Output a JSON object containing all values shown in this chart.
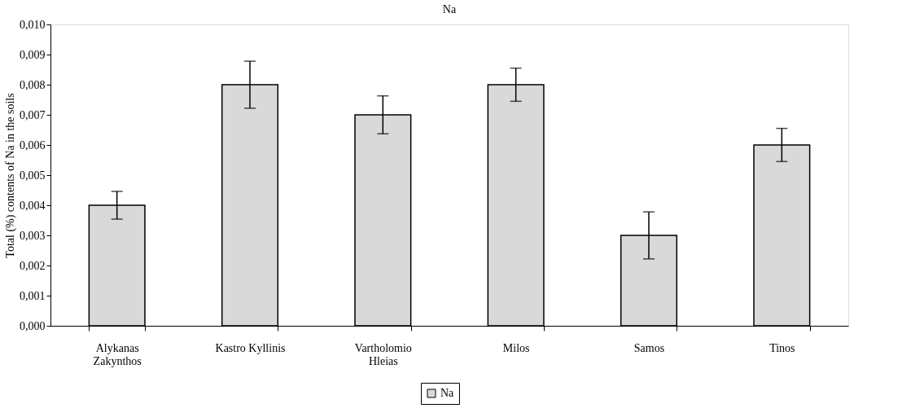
{
  "chart_data": {
    "type": "bar",
    "title": "Na",
    "ylabel": "Total (%) contents of Na in the soils",
    "categories": [
      "Alykanas\nZakynthos",
      "Kastro Kyllinis",
      "Vartholomio\nHleias",
      "Milos",
      "Samos",
      "Tinos"
    ],
    "series": [
      {
        "name": "Na",
        "color": "#d9d9d9",
        "values": [
          0.004,
          0.008,
          0.007,
          0.008,
          0.003,
          0.006
        ],
        "errors": [
          0.00046,
          0.00078,
          0.00063,
          0.00055,
          0.00078,
          0.00055
        ]
      }
    ],
    "ylim": [
      0,
      0.01
    ],
    "yticks": [
      {
        "value": 0,
        "label": "0,000"
      },
      {
        "value": 0.001,
        "label": "0,001"
      },
      {
        "value": 0.002,
        "label": "0,002"
      },
      {
        "value": 0.003,
        "label": "0,003"
      },
      {
        "value": 0.004,
        "label": "0,004"
      },
      {
        "value": 0.005,
        "label": "0,005"
      },
      {
        "value": 0.006,
        "label": "0,006"
      },
      {
        "value": 0.007,
        "label": "0,007"
      },
      {
        "value": 0.008,
        "label": "0,008"
      },
      {
        "value": 0.009,
        "label": "0,009"
      },
      {
        "value": 0.01,
        "label": "0,010"
      }
    ],
    "grid": false,
    "legend": "bottom"
  }
}
